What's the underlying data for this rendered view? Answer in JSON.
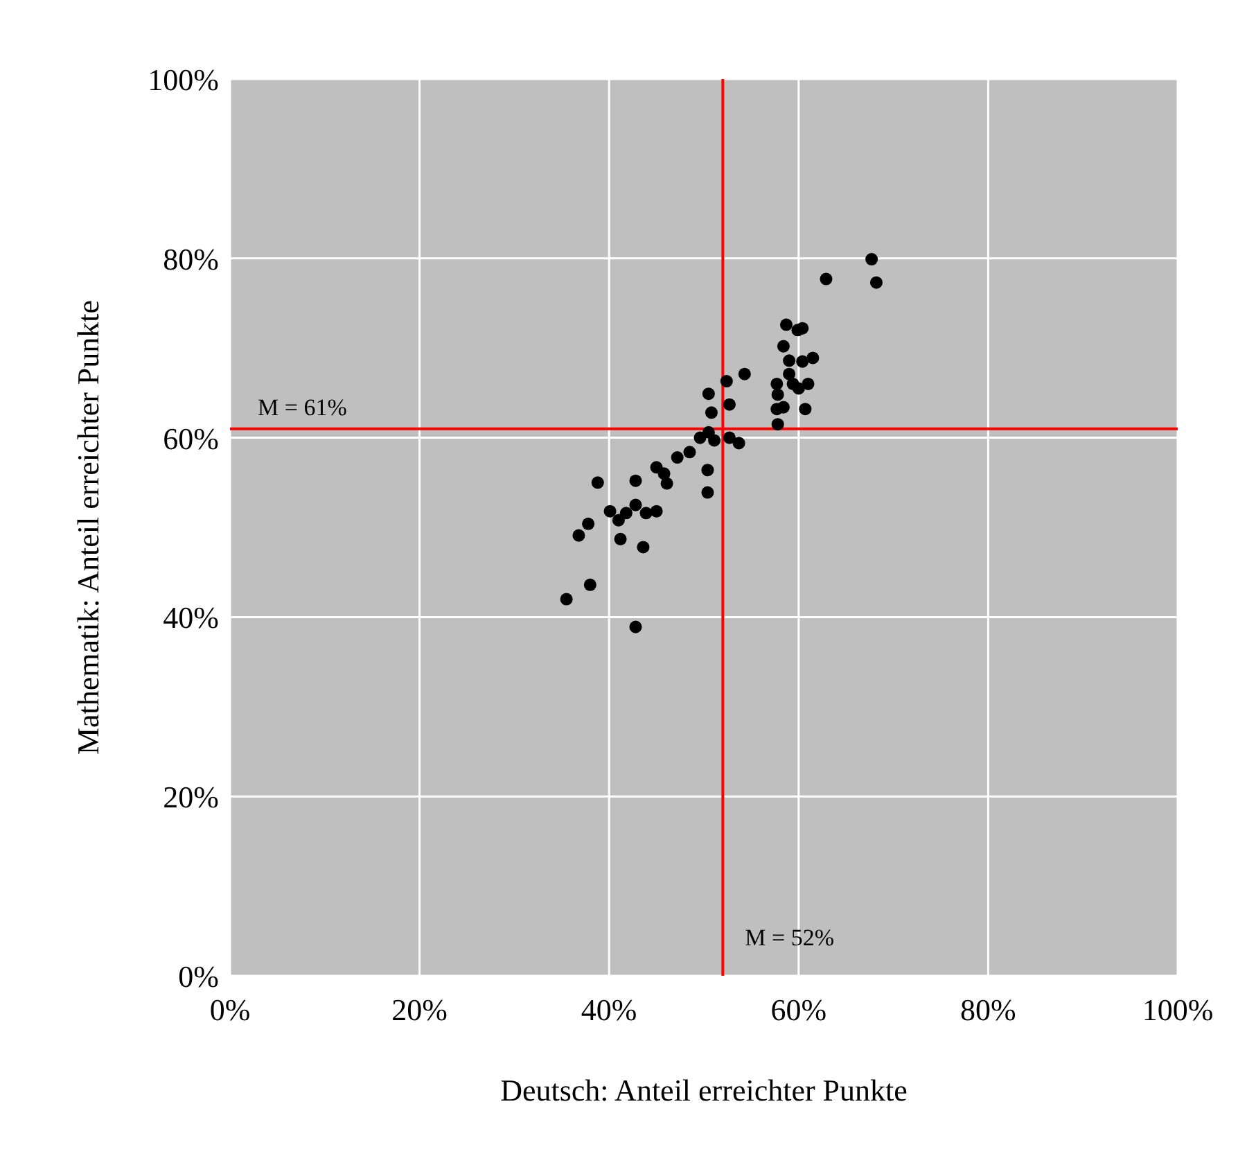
{
  "chart_data": {
    "type": "scatter",
    "xlabel": "Deutsch: Anteil erreichter Punkte",
    "ylabel": "Mathematik: Anteil erreichter Punkte",
    "xlim": [
      0,
      100
    ],
    "ylim": [
      0,
      100
    ],
    "xticks": [
      {
        "value": 0,
        "label": "0%"
      },
      {
        "value": 20,
        "label": "20%"
      },
      {
        "value": 40,
        "label": "40%"
      },
      {
        "value": 60,
        "label": "60%"
      },
      {
        "value": 80,
        "label": "80%"
      },
      {
        "value": 100,
        "label": "100%"
      }
    ],
    "yticks": [
      {
        "value": 0,
        "label": "0%"
      },
      {
        "value": 20,
        "label": "20%"
      },
      {
        "value": 40,
        "label": "40%"
      },
      {
        "value": 60,
        "label": "60%"
      },
      {
        "value": 80,
        "label": "80%"
      },
      {
        "value": 100,
        "label": "100%"
      }
    ],
    "grid": true,
    "marker": "circle",
    "x": [
      35.5,
      38,
      36.8,
      37.8,
      38.8,
      42.8,
      40.1,
      41,
      41.2,
      41.8,
      42.8,
      42.8,
      43.6,
      43.9,
      45,
      45,
      45.8,
      46.1,
      47.2,
      48.5,
      49.6,
      50.4,
      50.4,
      50.5,
      50.5,
      50.8,
      51.1,
      52.4,
      52.7,
      52.7,
      53.7,
      54.3,
      58.7,
      59.9,
      60.4,
      58.4,
      59,
      59,
      60.4,
      61.5,
      57.7,
      57.8,
      59.4,
      61,
      60,
      57.7,
      58.4,
      60.7,
      57.8,
      62.9,
      67.7,
      68.2
    ],
    "series": [
      {
        "color": "#000000",
        "values": [
          42,
          43.6,
          49.1,
          50.4,
          55,
          38.9,
          51.8,
          50.8,
          48.7,
          51.6,
          52.5,
          55.2,
          47.8,
          51.6,
          51.8,
          56.7,
          56,
          54.9,
          57.8,
          58.4,
          60,
          53.9,
          56.4,
          60.6,
          64.9,
          62.8,
          59.7,
          66.3,
          63.7,
          60,
          59.4,
          67.1,
          72.6,
          72,
          72.2,
          70.2,
          68.6,
          67.1,
          68.5,
          68.9,
          66,
          64.8,
          66,
          66,
          65.5,
          63.2,
          63.4,
          63.2,
          61.5,
          77.7,
          79.9,
          77.3
        ]
      }
    ],
    "ref_lines": [
      {
        "axis": "y",
        "value": 61,
        "label": "M = 61%",
        "color": "#ff0000"
      },
      {
        "axis": "x",
        "value": 52,
        "label": "M = 52%",
        "color": "#ff0000"
      }
    ]
  }
}
